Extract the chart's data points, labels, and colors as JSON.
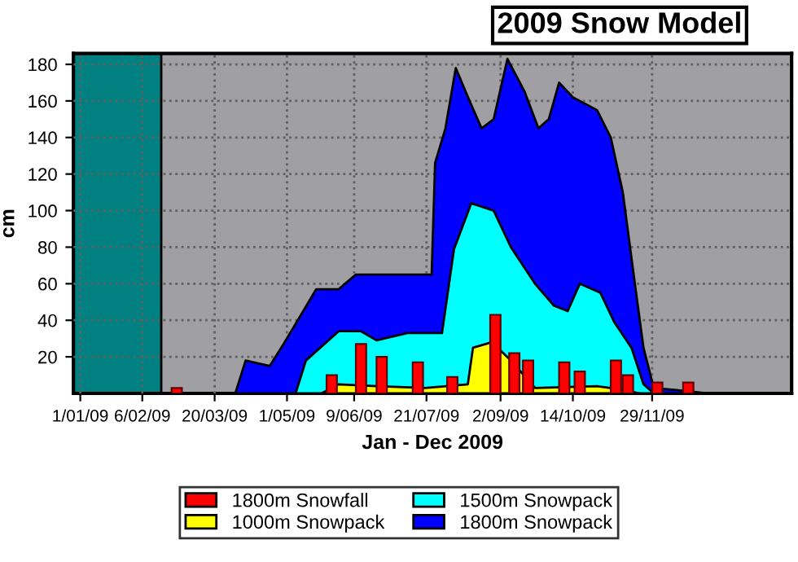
{
  "chart_data": {
    "type": "area",
    "title": "2009 Snow Model",
    "xlabel": "Jan - Dec 2009",
    "ylabel": "cm",
    "xlim": [
      "2008-12-28",
      "2010-02-18"
    ],
    "ylim": [
      0,
      186
    ],
    "xticks": [
      {
        "value": "2009-01-01",
        "label": "1/01/09"
      },
      {
        "value": "2009-02-06",
        "label": "6/02/09"
      },
      {
        "value": "2009-03-20",
        "label": "20/03/09"
      },
      {
        "value": "2009-05-01",
        "label": "1/05/09"
      },
      {
        "value": "2009-06-09",
        "label": "9/06/09"
      },
      {
        "value": "2009-07-21",
        "label": "21/07/09"
      },
      {
        "value": "2009-09-02",
        "label": "2/09/09"
      },
      {
        "value": "2009-10-14",
        "label": "14/10/09"
      },
      {
        "value": "2009-11-29",
        "label": "29/11/09"
      }
    ],
    "yticks": [
      20,
      40,
      60,
      80,
      100,
      120,
      140,
      160,
      180
    ],
    "grid": true,
    "legend": "bottom",
    "bands": [
      {
        "axis": "x",
        "from": "2008-12-28",
        "to": "2009-02-17",
        "color": "#008080"
      }
    ],
    "series": [
      {
        "name": "1800m Snowpack",
        "color": "#0000ff",
        "x": [
          "2009-04-01",
          "2009-04-07",
          "2009-04-21",
          "2009-04-29",
          "2009-05-06",
          "2009-05-18",
          "2009-05-31",
          "2009-06-10",
          "2009-07-10",
          "2009-07-24",
          "2009-07-26",
          "2009-08-01",
          "2009-08-07",
          "2009-08-15",
          "2009-08-22",
          "2009-08-29",
          "2009-09-06",
          "2009-09-16",
          "2009-09-24",
          "2009-09-30",
          "2009-10-06",
          "2009-10-14",
          "2009-10-28",
          "2009-11-05",
          "2009-11-12",
          "2009-11-19",
          "2009-11-24",
          "2009-11-30",
          "2009-12-12",
          "2009-12-31"
        ],
        "values": [
          0,
          18,
          15,
          27,
          38,
          57,
          57,
          65,
          65,
          65,
          126,
          145,
          178,
          160,
          145,
          150,
          183,
          165,
          145,
          150,
          170,
          162,
          155,
          140,
          110,
          60,
          25,
          3,
          2,
          0
        ]
      },
      {
        "name": "1500m Snowpack",
        "color": "#00ffff",
        "x": [
          "2009-05-06",
          "2009-05-12",
          "2009-05-31",
          "2009-06-13",
          "2009-06-22",
          "2009-07-10",
          "2009-07-30",
          "2009-08-06",
          "2009-08-16",
          "2009-08-29",
          "2009-09-08",
          "2009-09-22",
          "2009-10-03",
          "2009-10-11",
          "2009-10-18",
          "2009-10-30",
          "2009-11-07",
          "2009-11-17",
          "2009-11-24",
          "2009-11-30"
        ],
        "values": [
          0,
          18,
          34,
          34,
          29,
          33,
          33,
          79,
          104,
          100,
          80,
          60,
          48,
          45,
          60,
          55,
          39,
          25,
          5,
          0
        ]
      },
      {
        "name": "1000m Snowpack",
        "color": "#ffff00",
        "x": [
          "2009-05-21",
          "2009-05-31",
          "2009-06-22",
          "2009-07-20",
          "2009-08-14",
          "2009-08-17",
          "2009-08-28",
          "2009-09-08",
          "2009-09-22",
          "2009-10-28",
          "2009-11-12",
          "2009-11-22"
        ],
        "values": [
          0,
          5,
          4,
          3,
          5,
          25,
          28,
          18,
          3,
          4,
          2,
          0
        ]
      },
      {
        "name": "1800m Snowfall",
        "color": "#ff0000",
        "type": "bar",
        "x": [
          "2009-02-26",
          "2009-05-27",
          "2009-06-13",
          "2009-06-25",
          "2009-07-16",
          "2009-08-05",
          "2009-08-30",
          "2009-09-10",
          "2009-09-18",
          "2009-10-09",
          "2009-10-18",
          "2009-11-08",
          "2009-11-15",
          "2009-12-02",
          "2009-12-20"
        ],
        "values": [
          3,
          10,
          27,
          20,
          17,
          9,
          43,
          22,
          18,
          17,
          12,
          18,
          10,
          6,
          6
        ]
      }
    ]
  }
}
